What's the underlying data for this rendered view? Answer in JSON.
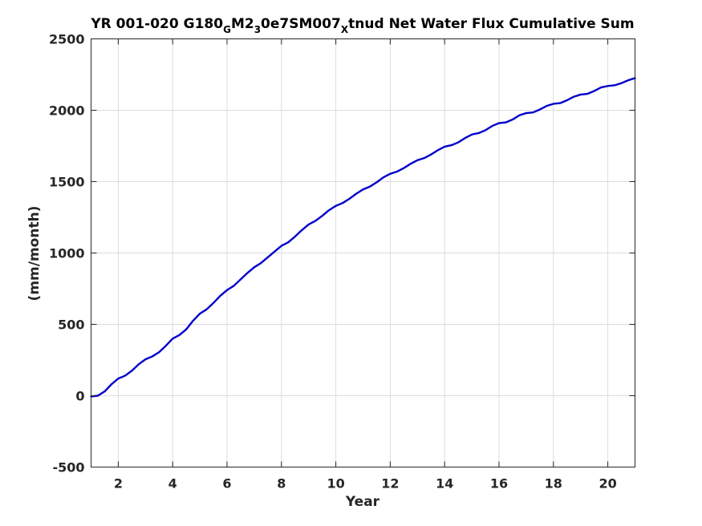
{
  "chart_data": {
    "type": "line",
    "title_parts": [
      {
        "text": "YR 001-020 G180",
        "sub": false
      },
      {
        "text": "G",
        "sub": true
      },
      {
        "text": "M2",
        "sub": false
      },
      {
        "text": "3",
        "sub": true
      },
      {
        "text": "0e7SM007",
        "sub": false
      },
      {
        "text": "X",
        "sub": true
      },
      {
        "text": "tnud Net Water Flux Cumulative Sum",
        "sub": false
      }
    ],
    "xlabel": "Year",
    "ylabel": "(mm/month)",
    "xlim": [
      1,
      21
    ],
    "ylim": [
      -500,
      2500
    ],
    "xticks": [
      2,
      4,
      6,
      8,
      10,
      12,
      14,
      16,
      18,
      20
    ],
    "yticks": [
      -500,
      0,
      500,
      1000,
      1500,
      2000,
      2500
    ],
    "grid": true,
    "colors": {
      "series": "#0000cd"
    },
    "series": [
      {
        "name": "",
        "x": [
          1.0,
          1.25,
          1.5,
          1.75,
          2.0,
          2.25,
          2.5,
          2.75,
          3.0,
          3.25,
          3.5,
          3.75,
          4.0,
          4.25,
          4.5,
          4.75,
          5.0,
          5.25,
          5.5,
          5.75,
          6.0,
          6.25,
          6.5,
          6.75,
          7.0,
          7.25,
          7.5,
          7.75,
          8.0,
          8.25,
          8.5,
          8.75,
          9.0,
          9.25,
          9.5,
          9.75,
          10.0,
          10.25,
          10.5,
          10.75,
          11.0,
          11.25,
          11.5,
          11.75,
          12.0,
          12.25,
          12.5,
          12.75,
          13.0,
          13.25,
          13.5,
          13.75,
          14.0,
          14.25,
          14.5,
          14.75,
          15.0,
          15.25,
          15.5,
          15.75,
          16.0,
          16.25,
          16.5,
          16.75,
          17.0,
          17.25,
          17.5,
          17.75,
          18.0,
          18.25,
          18.5,
          18.75,
          19.0,
          19.25,
          19.5,
          19.75,
          20.0,
          20.25,
          20.5,
          20.75,
          21.0
        ],
        "values": [
          -5,
          0,
          30,
          80,
          120,
          140,
          175,
          220,
          255,
          275,
          305,
          350,
          400,
          425,
          465,
          525,
          575,
          605,
          650,
          700,
          740,
          770,
          815,
          860,
          900,
          930,
          970,
          1010,
          1050,
          1075,
          1115,
          1160,
          1200,
          1225,
          1260,
          1300,
          1330,
          1350,
          1380,
          1415,
          1445,
          1465,
          1495,
          1530,
          1555,
          1570,
          1595,
          1625,
          1650,
          1665,
          1690,
          1720,
          1745,
          1755,
          1775,
          1805,
          1830,
          1840,
          1860,
          1890,
          1910,
          1915,
          1935,
          1965,
          1980,
          1985,
          2005,
          2030,
          2045,
          2050,
          2070,
          2095,
          2110,
          2115,
          2135,
          2160,
          2170,
          2175,
          2190,
          2210,
          2225
        ]
      }
    ]
  }
}
